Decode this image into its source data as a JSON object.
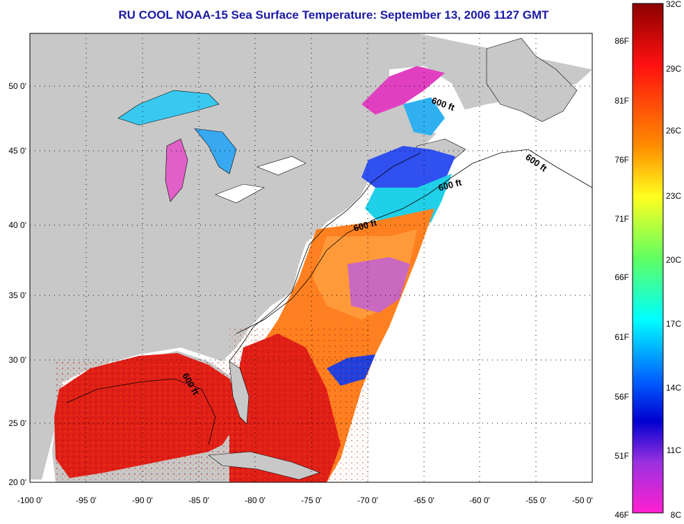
{
  "title": "RU COOL  NOAA-15  Sea Surface Temperature:  September 13, 2006 1127 GMT",
  "axes": {
    "x_ticks": [
      "-100 0'",
      "-95 0'",
      "-90 0'",
      "-85 0'",
      "-80 0'",
      "-75 0'",
      "-70 0'",
      "-65 0'",
      "-60 0'",
      "-55 0'",
      "-50 0'"
    ],
    "y_ticks": [
      "50 0'",
      "45 0'",
      "40 0'",
      "35 0'",
      "30 0'",
      "25 0'",
      "20 0'"
    ]
  },
  "depth_label": "600 ft",
  "colorbar": {
    "celsius": [
      "32C",
      "29C",
      "26C",
      "23C",
      "20C",
      "17C",
      "14C",
      "11C",
      "8C"
    ],
    "fahrenheit": [
      "86F",
      "81F",
      "76F",
      "71F",
      "66F",
      "61F",
      "56F",
      "51F",
      "46F"
    ]
  },
  "colors": {
    "land": "#c8c8c8",
    "ocean_nodata": "#ffffff",
    "title": "#1a1aa6",
    "outline": "#000000"
  }
}
